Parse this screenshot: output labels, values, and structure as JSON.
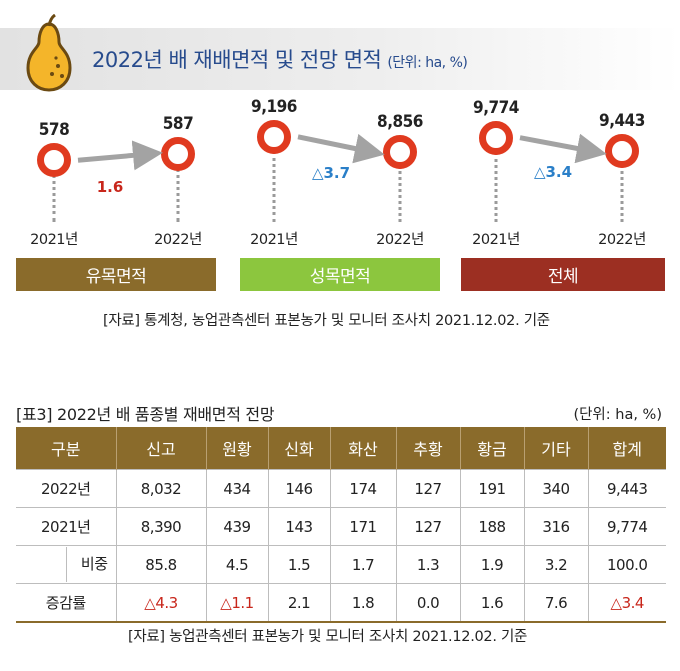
{
  "title": "2022년 배 재배면적 및 전망 면적",
  "unit": "(단위: ha, %)",
  "chart_data": {
    "type": "line",
    "title": "2022년 배 재배면적 및 전망 면적",
    "unit": "(단위: ha, %)",
    "panels": [
      {
        "category": "유목면적",
        "x": [
          "2021년",
          "2022년"
        ],
        "values": [
          578,
          587
        ],
        "labels": [
          "578",
          "587"
        ],
        "change": "1.6",
        "color": "#8a6b2b",
        "change_color": "#c8261b"
      },
      {
        "category": "성목면적",
        "x": [
          "2021년",
          "2022년"
        ],
        "values": [
          9196,
          8856
        ],
        "labels": [
          "9,196",
          "8,856"
        ],
        "change": "△3.7",
        "color": "#8cc63e",
        "change_color": "#2a7fc8"
      },
      {
        "category": "전체",
        "x": [
          "2021년",
          "2022년"
        ],
        "values": [
          9774,
          9443
        ],
        "labels": [
          "9,774",
          "9,443"
        ],
        "change": "△3.4",
        "color": "#9c2f22",
        "change_color": "#2a7fc8"
      }
    ]
  },
  "source1": "[자료] 통계청, 농업관측센터 표본농가 및 모니터 조사치 2021.12.02. 기준",
  "table": {
    "title": "[표3] 2022년 배 품종별 재배면적 전망",
    "unit": "(단위: ha, %)",
    "headers": [
      "구분",
      "신고",
      "원황",
      "신화",
      "화산",
      "추황",
      "황금",
      "기타",
      "합계"
    ],
    "rows": [
      {
        "label": "2022년",
        "cells": [
          "8,032",
          "434",
          "146",
          "174",
          "127",
          "191",
          "340",
          "9,443"
        ]
      },
      {
        "label": "2021년",
        "cells": [
          "8,390",
          "439",
          "143",
          "171",
          "127",
          "188",
          "316",
          "9,774"
        ]
      },
      {
        "label": "비중",
        "cells": [
          "85.8",
          "4.5",
          "1.5",
          "1.7",
          "1.3",
          "1.9",
          "3.2",
          "100.0"
        ]
      },
      {
        "label": "증감률",
        "cells": [
          "△4.3",
          "△1.1",
          "2.1",
          "1.8",
          "0.0",
          "1.6",
          "7.6",
          "△3.4"
        ]
      }
    ],
    "negative_color": "#c8261b"
  },
  "source2": "[자료] 농업관측센터 표본농가 및 모니터 조사치 2021.12.02. 기준"
}
